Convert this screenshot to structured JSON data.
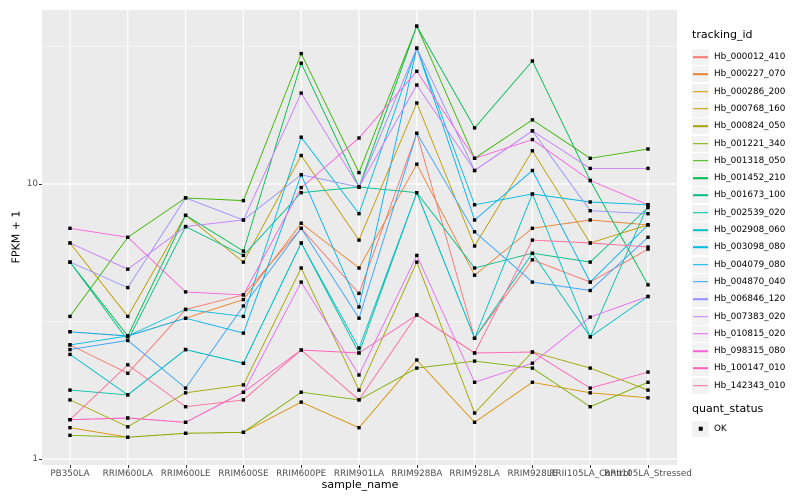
{
  "chart_data": {
    "type": "line",
    "title": "",
    "xlabel": "sample_name",
    "ylabel": "FPKM + 1",
    "y_scale": "log10",
    "ylim": [
      1,
      45
    ],
    "y_major_ticks": [
      1,
      10
    ],
    "y_minor_ticks": [
      3.162,
      31.62
    ],
    "grid": "on",
    "marker": "black-square",
    "legend_position": "right",
    "legend_title": "tracking_id",
    "categories": [
      "PB350LA",
      "RRIM600LA",
      "RRIM600LE",
      "RRIM600SE",
      "RRIM600PE",
      "RRIM901LA",
      "RRIM928BA",
      "RRIM928LA",
      "RRIM928LE",
      "RRII105LA_Control",
      "RRII105LA_Stressed"
    ],
    "series": [
      {
        "name": "Hb_000012_410",
        "color": "#F8766D",
        "values": [
          2.6,
          2.05,
          3.5,
          3.95,
          6.9,
          4.0,
          15.3,
          2.75,
          5.3,
          4.4,
          5.8
        ]
      },
      {
        "name": "Hb_000227_070",
        "color": "#EA8331",
        "values": [
          2.9,
          2.8,
          3.25,
          3.8,
          7.2,
          4.95,
          11.8,
          4.66,
          6.9,
          7.4,
          7.1
        ]
      },
      {
        "name": "Hb_000286_200",
        "color": "#D89000",
        "values": [
          1.3,
          1.2,
          1.24,
          1.25,
          1.61,
          1.3,
          2.29,
          1.36,
          1.9,
          1.74,
          1.67
        ]
      },
      {
        "name": "Hb_000768_160",
        "color": "#C09B00",
        "values": [
          6.1,
          3.3,
          7.7,
          5.2,
          12.7,
          6.25,
          19.7,
          5.95,
          13.2,
          6.1,
          7.1
        ]
      },
      {
        "name": "Hb_000824_050",
        "color": "#A3A500",
        "values": [
          1.64,
          1.31,
          1.74,
          1.86,
          4.95,
          1.78,
          5.2,
          1.47,
          2.45,
          2.14,
          1.78
        ]
      },
      {
        "name": "Hb_001221_340",
        "color": "#7CAE00",
        "values": [
          1.22,
          1.2,
          1.24,
          1.25,
          1.75,
          1.64,
          2.14,
          2.27,
          2.14,
          1.55,
          1.9
        ]
      },
      {
        "name": "Hb_001318_050",
        "color": "#39B600",
        "values": [
          3.3,
          6.4,
          8.9,
          8.7,
          29.8,
          11.0,
          37.5,
          12.4,
          17.1,
          12.4,
          13.4
        ]
      },
      {
        "name": "Hb_001452_210",
        "color": "#00BB4E",
        "values": [
          5.2,
          2.8,
          7.7,
          5.7,
          27.5,
          9.75,
          37.5,
          16.0,
          28.0,
          10.3,
          4.3
        ]
      },
      {
        "name": "Hb_001673_100",
        "color": "#00C087",
        "values": [
          5.2,
          2.7,
          7.0,
          5.5,
          9.3,
          9.75,
          9.3,
          4.95,
          5.6,
          5.2,
          8.2
        ]
      },
      {
        "name": "Hb_002539_020",
        "color": "#00C1A9",
        "values": [
          1.78,
          1.71,
          2.5,
          2.23,
          6.1,
          2.43,
          9.3,
          2.75,
          5.6,
          2.78,
          8.4
        ]
      },
      {
        "name": "Hb_002908_060",
        "color": "#00BFC4",
        "values": [
          2.4,
          1.71,
          2.5,
          2.23,
          6.1,
          2.53,
          9.3,
          2.75,
          9.2,
          2.78,
          3.9
        ]
      },
      {
        "name": "Hb_003098_080",
        "color": "#00BAE0",
        "values": [
          2.6,
          2.8,
          3.5,
          3.3,
          14.8,
          7.8,
          31.2,
          8.4,
          9.2,
          8.6,
          8.4
        ]
      },
      {
        "name": "Hb_004079_080",
        "color": "#00B0F6",
        "values": [
          2.9,
          2.8,
          3.25,
          2.87,
          10.8,
          3.57,
          31.2,
          7.4,
          11.2,
          4.4,
          7.1
        ]
      },
      {
        "name": "Hb_004870_040",
        "color": "#35A2FF",
        "values": [
          2.5,
          2.7,
          1.81,
          3.6,
          6.9,
          3.25,
          15.3,
          6.7,
          4.4,
          4.1,
          6.4
        ]
      },
      {
        "name": "Hb_006846_120",
        "color": "#9590FF",
        "values": [
          5.2,
          4.2,
          8.9,
          7.4,
          10.8,
          9.75,
          31.2,
          11.2,
          15.6,
          8.0,
          7.8
        ]
      },
      {
        "name": "Hb_007383_020",
        "color": "#C77CFF",
        "values": [
          6.1,
          4.9,
          7.0,
          7.4,
          21.4,
          9.75,
          22.9,
          11.2,
          15.6,
          11.4,
          11.4
        ]
      },
      {
        "name": "Hb_010815_020",
        "color": "#E76BF3",
        "values": [
          1.39,
          1.41,
          1.36,
          1.75,
          4.4,
          2.02,
          5.5,
          1.9,
          2.23,
          3.28,
          3.9
        ]
      },
      {
        "name": "Hb_098315_080",
        "color": "#FA62DB",
        "values": [
          6.9,
          6.4,
          4.05,
          3.95,
          9.7,
          14.7,
          25.7,
          12.4,
          14.5,
          10.3,
          8.4
        ]
      },
      {
        "name": "Hb_100147_010",
        "color": "#FF62BC",
        "values": [
          1.39,
          1.41,
          1.36,
          1.75,
          2.49,
          2.43,
          3.34,
          2.43,
          2.45,
          1.81,
          2.07
        ]
      },
      {
        "name": "Hb_142343_010",
        "color": "#FF6A98",
        "values": [
          1.39,
          2.2,
          1.55,
          1.64,
          2.49,
          1.64,
          3.34,
          2.43,
          6.25,
          6.1,
          5.9
        ]
      }
    ],
    "quant_legend": {
      "title": "quant_status",
      "items": [
        {
          "label": "OK",
          "marker": "black-square"
        }
      ]
    },
    "panel_color": "#EBEBEB",
    "gridline_color": "#FFFFFF",
    "point_color": "#000000",
    "tick_text_color": "#4d4d4d"
  }
}
